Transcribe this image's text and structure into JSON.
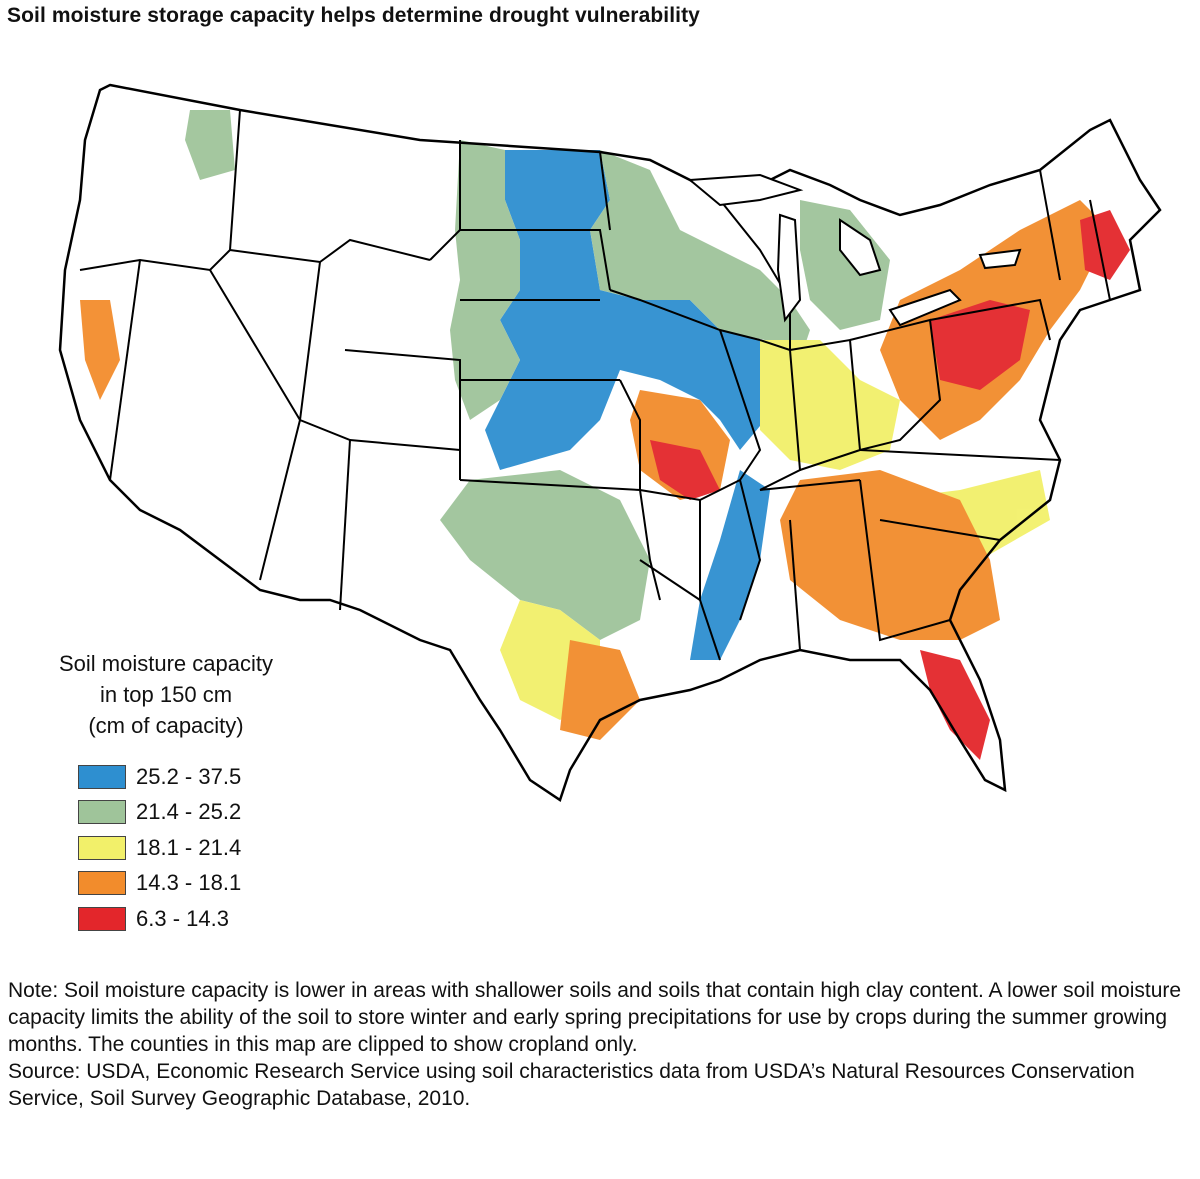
{
  "title": "Soil moisture storage capacity helps determine drought vulnerability",
  "legend": {
    "title_lines": [
      "Soil moisture capacity",
      "in top 150 cm",
      "(cm of capacity)"
    ],
    "items": [
      {
        "label": "25.2 - 37.5",
        "color": "#2e8fd0"
      },
      {
        "label": "21.4 - 25.2",
        "color": "#9fc49a"
      },
      {
        "label": "18.1 - 21.4",
        "color": "#f2f06a"
      },
      {
        "label": "14.3 - 18.1",
        "color": "#f28c2c"
      },
      {
        "label": "6.3 - 14.3",
        "color": "#e3262b"
      }
    ]
  },
  "note": "Note: Soil moisture capacity is lower in areas with shallower soils and soils that contain high clay content. A lower soil moisture capacity limits the ability of the soil to store winter and early spring precipitations for use by crops during the summer growing months. The counties in this map are clipped to show cropland only.",
  "source": "Source: USDA, Economic Research Service using soil characteristics data from USDA’s Natural Resources Conservation Service, Soil Survey Geographic Database, 2010."
}
